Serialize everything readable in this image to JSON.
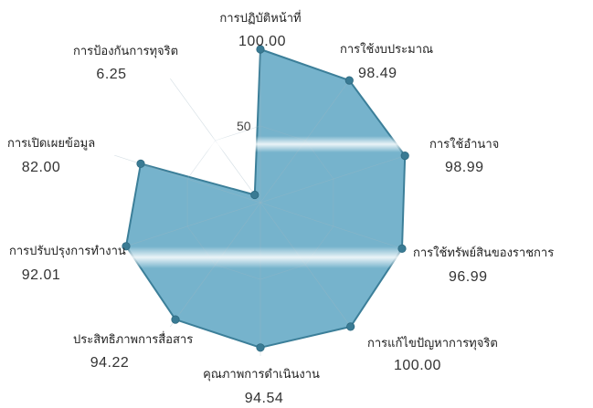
{
  "chart_data": {
    "type": "radar",
    "title": "",
    "rlim": [
      0,
      100
    ],
    "ticks": [
      50
    ],
    "grid": true,
    "categories": [
      "การปฏิบัติหน้าที่",
      "การใช้งบประมาณ",
      "การใช้อำนาจ",
      "การใช้ทรัพย์สินของราชการ",
      "การแก้ไขปัญหาการทุจริต",
      "คุณภาพการดำเนินงาน",
      "ประสิทธิภาพการสื่อสาร",
      "การปรับปรุงการทำงาน",
      "การเปิดเผยข้อมูล",
      "การป้องกันการทุจริต"
    ],
    "values": [
      100.0,
      98.49,
      98.99,
      96.99,
      100.0,
      94.54,
      94.22,
      92.01,
      82.0,
      6.25
    ],
    "value_labels": [
      "100.00",
      "98.49",
      "98.99",
      "96.99",
      "100.00",
      "94.54",
      "94.22",
      "92.01",
      "82.00",
      "6.25"
    ],
    "colors": {
      "fill": "#76b3cc",
      "stroke": "#3c7f99",
      "point": "#3a7b94",
      "grid": "#9fb6c2"
    }
  }
}
